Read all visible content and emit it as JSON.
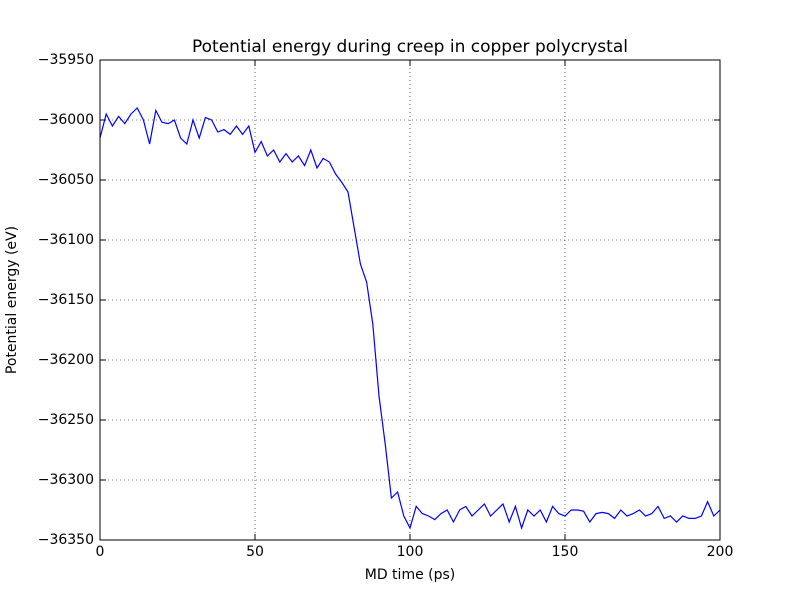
{
  "chart_data": {
    "type": "line",
    "title": "Potential energy during creep in copper polycrystal",
    "xlabel": "MD time (ps)",
    "ylabel": "Potential energy (eV)",
    "x": [
      0,
      2,
      4,
      6,
      8,
      10,
      12,
      14,
      16,
      18,
      20,
      22,
      24,
      26,
      28,
      30,
      32,
      34,
      36,
      38,
      40,
      42,
      44,
      46,
      48,
      50,
      52,
      54,
      56,
      58,
      60,
      62,
      64,
      66,
      68,
      70,
      72,
      74,
      76,
      78,
      80,
      82,
      84,
      86,
      88,
      90,
      92,
      94,
      96,
      98,
      100,
      102,
      104,
      106,
      108,
      110,
      112,
      114,
      116,
      118,
      120,
      122,
      124,
      126,
      128,
      130,
      132,
      134,
      136,
      138,
      140,
      142,
      144,
      146,
      148,
      150,
      152,
      154,
      156,
      158,
      160,
      162,
      164,
      166,
      168,
      170,
      172,
      174,
      176,
      178,
      180,
      182,
      184,
      186,
      188,
      190,
      192,
      194,
      196,
      198,
      200
    ],
    "series": [
      {
        "name": "Potential energy",
        "color": "#0000ff",
        "values": [
          -36015,
          -35995,
          -36005,
          -35997,
          -36003,
          -35995,
          -35990,
          -36000,
          -36020,
          -35992,
          -36002,
          -36003,
          -36000,
          -36015,
          -36020,
          -36000,
          -36015,
          -35998,
          -36000,
          -36010,
          -36008,
          -36012,
          -36005,
          -36012,
          -36005,
          -36027,
          -36018,
          -36030,
          -36025,
          -36035,
          -36028,
          -36035,
          -36030,
          -36038,
          -36025,
          -36040,
          -36032,
          -36035,
          -36045,
          -36052,
          -36060,
          -36090,
          -36120,
          -36135,
          -36170,
          -36230,
          -36270,
          -36315,
          -36310,
          -36330,
          -36340,
          -36322,
          -36328,
          -36330,
          -36333,
          -36328,
          -36325,
          -36335,
          -36325,
          -36322,
          -36330,
          -36325,
          -36320,
          -36330,
          -36325,
          -36320,
          -36335,
          -36322,
          -36340,
          -36325,
          -36330,
          -36325,
          -36335,
          -36322,
          -36328,
          -36330,
          -36325,
          -36325,
          -36326,
          -36335,
          -36328,
          -36327,
          -36328,
          -36332,
          -36325,
          -36330,
          -36328,
          -36325,
          -36330,
          -36328,
          -36322,
          -36332,
          -36330,
          -36335,
          -36330,
          -36332,
          -36332,
          -36330,
          -36318,
          -36330,
          -36325
        ]
      }
    ],
    "xlim": [
      0,
      200
    ],
    "xticks": [
      0,
      50,
      100,
      150,
      200
    ],
    "ylim": [
      -36350,
      -35950
    ],
    "yticks": [
      {
        "value": -36350,
        "label": "−36350"
      },
      {
        "value": -36300,
        "label": "−36300"
      },
      {
        "value": -36250,
        "label": "−36250"
      },
      {
        "value": -36200,
        "label": "−36200"
      },
      {
        "value": -36150,
        "label": "−36150"
      },
      {
        "value": -36100,
        "label": "−36100"
      },
      {
        "value": -36050,
        "label": "−36050"
      },
      {
        "value": -36000,
        "label": "−36000"
      },
      {
        "value": -35950,
        "label": "−35950"
      }
    ],
    "grid": true
  }
}
